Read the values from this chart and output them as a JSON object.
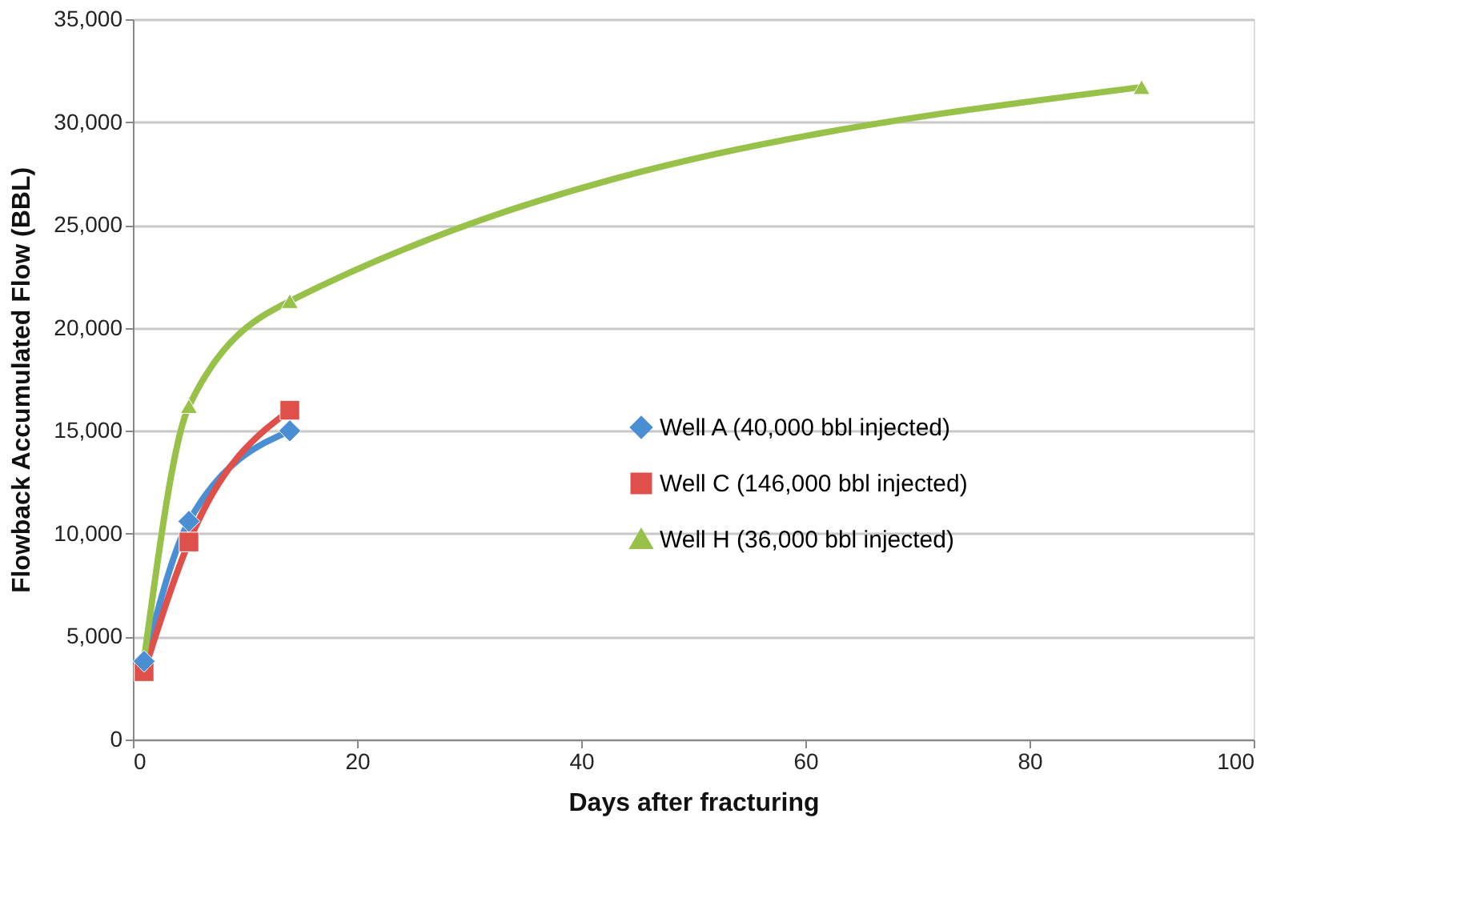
{
  "chart_data": {
    "type": "line",
    "xlabel": "Days after fracturing",
    "ylabel": "Flowback Accumulated Flow (BBL)",
    "xlim": [
      0,
      100
    ],
    "xticks": [
      0,
      20,
      40,
      60,
      80,
      100
    ],
    "ylim": [
      0,
      35000
    ],
    "yticks": [
      {
        "value": 0,
        "label": "0"
      },
      {
        "value": 5000,
        "label": "5,000"
      },
      {
        "value": 10000,
        "label": "10,000"
      },
      {
        "value": 15000,
        "label": "15,000"
      },
      {
        "value": 20000,
        "label": "20,000"
      },
      {
        "value": 25000,
        "label": "25,000"
      },
      {
        "value": 30000,
        "label": "30,000"
      },
      {
        "value": 35000,
        "label": "35,000"
      }
    ],
    "grid": "y",
    "legend": "right",
    "series": [
      {
        "name": "Well A (40,000 bbl injected)",
        "color": "#4a8fd4",
        "marker": "diamond",
        "x": [
          1,
          5,
          14
        ],
        "values": [
          3800,
          10600,
          15000
        ]
      },
      {
        "name": "Well C (146,000 bbl injected)",
        "color": "#e0504a",
        "marker": "square",
        "x": [
          1,
          5,
          14
        ],
        "values": [
          3300,
          9600,
          16000
        ]
      },
      {
        "name": "Well H (36,000 bbl injected)",
        "color": "#98c14a",
        "marker": "triangle",
        "x": [
          1,
          5,
          14,
          90
        ],
        "values": [
          3900,
          16200,
          21300,
          31700
        ]
      }
    ]
  }
}
